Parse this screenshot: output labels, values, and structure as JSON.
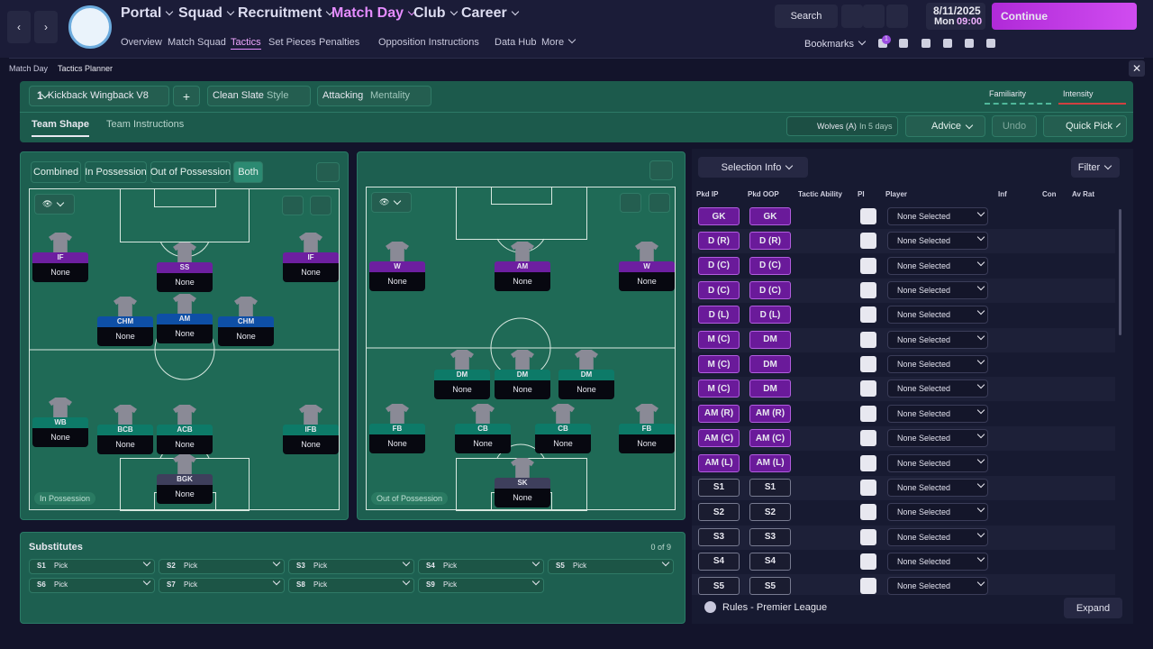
{
  "nav": {
    "main": [
      "Portal",
      "Squad",
      "Recruitment",
      "Match Day",
      "Club",
      "Career"
    ],
    "active_main": 3,
    "sub": [
      "Overview",
      "Match Squad",
      "Tactics",
      "Set Pieces",
      "Penalties",
      "Opposition Instructions",
      "Data Hub",
      "More"
    ],
    "active_sub": 2
  },
  "search": "Search",
  "date": "8/11/2025",
  "day": "Mon",
  "time": "09:00",
  "continue": "Continue",
  "bookmarks": "Bookmarks",
  "notification_count": "1",
  "breadcrumb": [
    "Match Day",
    "Tactics Planner"
  ],
  "tactic": {
    "slot": "1",
    "name": "Kickback Wingback V8",
    "style_value": "Clean Slate",
    "style_label": "Style",
    "mentality_value": "Attacking",
    "mentality_label": "Mentality",
    "familiarity": "Familiarity",
    "intensity": "Intensity"
  },
  "tabs": [
    "Team Shape",
    "Team Instructions"
  ],
  "tab_selected": 0,
  "next_match": {
    "opponent": "Wolves (A)",
    "when": "In 5 days"
  },
  "buttons": {
    "advice": "Advice",
    "undo": "Undo",
    "quick_pick": "Quick Pick"
  },
  "view_toggle": [
    "Combined",
    "In Possession",
    "Out of Possession",
    "Both"
  ],
  "toggle_selected": 3,
  "pitch_ip": {
    "label": "In Possession",
    "players": [
      {
        "role": "IF",
        "player": "None"
      },
      {
        "role": "SS",
        "player": "None"
      },
      {
        "role": "IF",
        "player": "None"
      },
      {
        "role": "CHM",
        "player": "None"
      },
      {
        "role": "AM",
        "player": "None"
      },
      {
        "role": "CHM",
        "player": "None"
      },
      {
        "role": "WB",
        "player": "None"
      },
      {
        "role": "BCB",
        "player": "None"
      },
      {
        "role": "ACB",
        "player": "None"
      },
      {
        "role": "IFB",
        "player": "None"
      },
      {
        "role": "BGK",
        "player": "None"
      }
    ]
  },
  "pitch_oop": {
    "label": "Out of Possession",
    "players": [
      {
        "role": "W",
        "player": "None"
      },
      {
        "role": "AM",
        "player": "None"
      },
      {
        "role": "W",
        "player": "None"
      },
      {
        "role": "DM",
        "player": "None"
      },
      {
        "role": "DM",
        "player": "None"
      },
      {
        "role": "DM",
        "player": "None"
      },
      {
        "role": "FB",
        "player": "None"
      },
      {
        "role": "CB",
        "player": "None"
      },
      {
        "role": "CB",
        "player": "None"
      },
      {
        "role": "FB",
        "player": "None"
      },
      {
        "role": "SK",
        "player": "None"
      }
    ]
  },
  "substitutes": {
    "title": "Substitutes",
    "count": "0 of 9",
    "slots": [
      {
        "slot": "S1",
        "pick": "Pick"
      },
      {
        "slot": "S2",
        "pick": "Pick"
      },
      {
        "slot": "S3",
        "pick": "Pick"
      },
      {
        "slot": "S4",
        "pick": "Pick"
      },
      {
        "slot": "S5",
        "pick": "Pick"
      },
      {
        "slot": "S6",
        "pick": "Pick"
      },
      {
        "slot": "S7",
        "pick": "Pick"
      },
      {
        "slot": "S8",
        "pick": "Pick"
      },
      {
        "slot": "S9",
        "pick": "Pick"
      }
    ]
  },
  "selection": {
    "dropdown": "Selection Info",
    "filter": "Filter",
    "columns": [
      "Pkd IP",
      "Pkd OOP",
      "Tactic Ability",
      "PI",
      "Player",
      "Inf",
      "Con",
      "Av Rat"
    ],
    "rows": [
      {
        "ip": "GK",
        "oop": "GK",
        "player": "None Selected"
      },
      {
        "ip": "D (R)",
        "oop": "D (R)",
        "player": "None Selected"
      },
      {
        "ip": "D (C)",
        "oop": "D (C)",
        "player": "None Selected"
      },
      {
        "ip": "D (C)",
        "oop": "D (C)",
        "player": "None Selected"
      },
      {
        "ip": "D (L)",
        "oop": "D (L)",
        "player": "None Selected"
      },
      {
        "ip": "M (C)",
        "oop": "DM",
        "player": "None Selected"
      },
      {
        "ip": "M (C)",
        "oop": "DM",
        "player": "None Selected"
      },
      {
        "ip": "M (C)",
        "oop": "DM",
        "player": "None Selected"
      },
      {
        "ip": "AM (R)",
        "oop": "AM (R)",
        "player": "None Selected"
      },
      {
        "ip": "AM (C)",
        "oop": "AM (C)",
        "player": "None Selected"
      },
      {
        "ip": "AM (L)",
        "oop": "AM (L)",
        "player": "None Selected"
      },
      {
        "ip": "S1",
        "oop": "S1",
        "player": "None Selected"
      },
      {
        "ip": "S2",
        "oop": "S2",
        "player": "None Selected"
      },
      {
        "ip": "S3",
        "oop": "S3",
        "player": "None Selected"
      },
      {
        "ip": "S4",
        "oop": "S4",
        "player": "None Selected"
      },
      {
        "ip": "S5",
        "oop": "S5",
        "player": "None Selected"
      }
    ],
    "rules": "Rules - Premier League",
    "expand": "Expand"
  }
}
